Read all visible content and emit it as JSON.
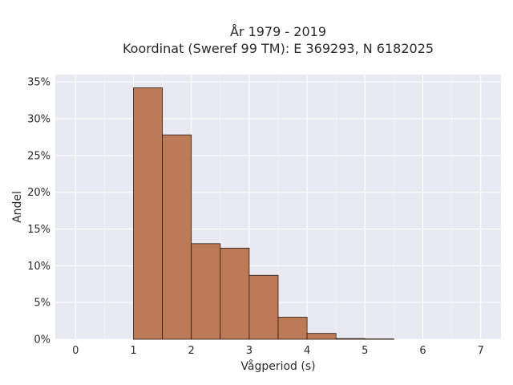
{
  "chart_data": {
    "type": "bar",
    "title_line1": "År 1979 - 2019",
    "title_line2": "Koordinat (Sweref 99 TM): E 369293, N 6182025",
    "xlabel": "Vågperiod (s)",
    "ylabel": "Andel",
    "bin_width": 0.5,
    "bins": [
      {
        "x0": 1.0,
        "value": 34.2
      },
      {
        "x0": 1.5,
        "value": 27.8
      },
      {
        "x0": 2.0,
        "value": 13.0
      },
      {
        "x0": 2.5,
        "value": 12.4
      },
      {
        "x0": 3.0,
        "value": 8.7
      },
      {
        "x0": 3.5,
        "value": 3.0
      },
      {
        "x0": 4.0,
        "value": 0.8
      },
      {
        "x0": 4.5,
        "value": 0.1
      },
      {
        "x0": 5.0,
        "value": 0.05
      }
    ],
    "xlim": [
      -0.35,
      7.35
    ],
    "ylim": [
      0,
      36
    ],
    "x_ticks": [
      0,
      1,
      2,
      3,
      4,
      5,
      6,
      7
    ],
    "y_ticks": [
      0,
      5,
      10,
      15,
      20,
      25,
      30,
      35
    ],
    "y_tick_suffix": "%",
    "bar_color": "#bd7a56",
    "plot_background": "#e9e9f2",
    "grid": true
  }
}
